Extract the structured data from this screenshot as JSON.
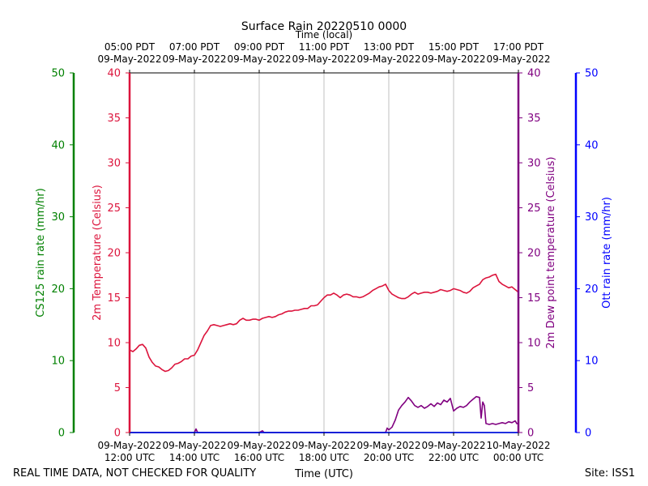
{
  "chart_data": {
    "type": "line",
    "title": "Surface Rain 20220510 0000",
    "top_xlabel": "Time (local)",
    "xlabel": "Time (UTC)",
    "footer_left": "REAL TIME DATA, NOT CHECKED FOR QUALITY",
    "footer_right": "Site: ISS1",
    "x_range_hours": [
      12,
      24
    ],
    "bottom_ticks": [
      {
        "hour": 12,
        "date": "09-May-2022",
        "time": "12:00 UTC"
      },
      {
        "hour": 14,
        "date": "09-May-2022",
        "time": "14:00 UTC"
      },
      {
        "hour": 16,
        "date": "09-May-2022",
        "time": "16:00 UTC"
      },
      {
        "hour": 18,
        "date": "09-May-2022",
        "time": "18:00 UTC"
      },
      {
        "hour": 20,
        "date": "09-May-2022",
        "time": "20:00 UTC"
      },
      {
        "hour": 22,
        "date": "09-May-2022",
        "time": "22:00 UTC"
      },
      {
        "hour": 24,
        "date": "10-May-2022",
        "time": "00:00 UTC"
      }
    ],
    "top_ticks": [
      {
        "hour": 12,
        "time": "05:00 PDT",
        "date": "09-May-2022"
      },
      {
        "hour": 14,
        "time": "07:00 PDT",
        "date": "09-May-2022"
      },
      {
        "hour": 16,
        "time": "09:00 PDT",
        "date": "09-May-2022"
      },
      {
        "hour": 18,
        "time": "11:00 PDT",
        "date": "09-May-2022"
      },
      {
        "hour": 20,
        "time": "13:00 PDT",
        "date": "09-May-2022"
      },
      {
        "hour": 22,
        "time": "15:00 PDT",
        "date": "09-May-2022"
      },
      {
        "hour": 24,
        "time": "17:00 PDT",
        "date": "09-May-2022"
      }
    ],
    "axes": {
      "cs125": {
        "label": "CS125 rain rate (mm/hr)",
        "ylim": [
          0,
          50
        ],
        "ticks": [
          0,
          10,
          20,
          30,
          40,
          50
        ],
        "color": "#008000"
      },
      "temperature": {
        "label": "2m Temperature (Celsius)",
        "ylim": [
          0,
          40
        ],
        "ticks": [
          0,
          5,
          10,
          15,
          20,
          25,
          30,
          35,
          40
        ],
        "color": "#dc143c"
      },
      "dewpoint": {
        "label": "2m Dew point temperature (Celsius)",
        "ylim": [
          0,
          40
        ],
        "ticks": [
          0,
          5,
          10,
          15,
          20,
          25,
          30,
          35,
          40
        ],
        "color": "#800080"
      },
      "ott": {
        "label": "Ott rain rate (mm/hr)",
        "ylim": [
          0,
          50
        ],
        "ticks": [
          0,
          10,
          20,
          30,
          40,
          50
        ],
        "color": "#0000ff"
      }
    },
    "series": [
      {
        "name": "2m Temperature",
        "axis": "temperature",
        "color": "#dc143c",
        "points": [
          [
            12.0,
            9.2
          ],
          [
            12.1,
            9.0
          ],
          [
            12.2,
            9.3
          ],
          [
            12.3,
            9.7
          ],
          [
            12.4,
            9.8
          ],
          [
            12.5,
            9.4
          ],
          [
            12.6,
            8.4
          ],
          [
            12.7,
            7.8
          ],
          [
            12.8,
            7.4
          ],
          [
            12.9,
            7.3
          ],
          [
            13.0,
            7.0
          ],
          [
            13.1,
            6.8
          ],
          [
            13.2,
            6.9
          ],
          [
            13.3,
            7.2
          ],
          [
            13.4,
            7.6
          ],
          [
            13.5,
            7.7
          ],
          [
            13.6,
            7.9
          ],
          [
            13.7,
            8.2
          ],
          [
            13.8,
            8.2
          ],
          [
            13.9,
            8.5
          ],
          [
            14.0,
            8.6
          ],
          [
            14.1,
            9.2
          ],
          [
            14.2,
            10.0
          ],
          [
            14.3,
            10.8
          ],
          [
            14.4,
            11.3
          ],
          [
            14.5,
            11.9
          ],
          [
            14.6,
            12.0
          ],
          [
            14.7,
            11.9
          ],
          [
            14.8,
            11.8
          ],
          [
            14.9,
            11.9
          ],
          [
            15.0,
            12.0
          ],
          [
            15.1,
            12.1
          ],
          [
            15.2,
            12.0
          ],
          [
            15.3,
            12.1
          ],
          [
            15.4,
            12.5
          ],
          [
            15.5,
            12.7
          ],
          [
            15.6,
            12.5
          ],
          [
            15.7,
            12.5
          ],
          [
            15.8,
            12.6
          ],
          [
            15.9,
            12.6
          ],
          [
            16.0,
            12.5
          ],
          [
            16.1,
            12.7
          ],
          [
            16.2,
            12.8
          ],
          [
            16.3,
            12.9
          ],
          [
            16.4,
            12.8
          ],
          [
            16.5,
            12.9
          ],
          [
            16.6,
            13.1
          ],
          [
            16.7,
            13.2
          ],
          [
            16.8,
            13.4
          ],
          [
            16.9,
            13.5
          ],
          [
            17.0,
            13.5
          ],
          [
            17.1,
            13.6
          ],
          [
            17.2,
            13.6
          ],
          [
            17.3,
            13.7
          ],
          [
            17.4,
            13.8
          ],
          [
            17.5,
            13.8
          ],
          [
            17.6,
            14.1
          ],
          [
            17.7,
            14.1
          ],
          [
            17.8,
            14.2
          ],
          [
            17.9,
            14.6
          ],
          [
            18.0,
            15.0
          ],
          [
            18.1,
            15.3
          ],
          [
            18.2,
            15.3
          ],
          [
            18.3,
            15.5
          ],
          [
            18.4,
            15.3
          ],
          [
            18.5,
            15.0
          ],
          [
            18.6,
            15.3
          ],
          [
            18.7,
            15.4
          ],
          [
            18.8,
            15.3
          ],
          [
            18.9,
            15.1
          ],
          [
            19.0,
            15.1
          ],
          [
            19.1,
            15.0
          ],
          [
            19.2,
            15.1
          ],
          [
            19.3,
            15.3
          ],
          [
            19.4,
            15.5
          ],
          [
            19.5,
            15.8
          ],
          [
            19.6,
            16.0
          ],
          [
            19.7,
            16.2
          ],
          [
            19.8,
            16.3
          ],
          [
            19.9,
            16.5
          ],
          [
            20.0,
            15.8
          ],
          [
            20.1,
            15.4
          ],
          [
            20.2,
            15.2
          ],
          [
            20.3,
            15.0
          ],
          [
            20.4,
            14.9
          ],
          [
            20.5,
            14.9
          ],
          [
            20.6,
            15.1
          ],
          [
            20.7,
            15.4
          ],
          [
            20.8,
            15.6
          ],
          [
            20.9,
            15.4
          ],
          [
            21.0,
            15.5
          ],
          [
            21.1,
            15.6
          ],
          [
            21.2,
            15.6
          ],
          [
            21.3,
            15.5
          ],
          [
            21.4,
            15.6
          ],
          [
            21.5,
            15.7
          ],
          [
            21.6,
            15.9
          ],
          [
            21.7,
            15.8
          ],
          [
            21.8,
            15.7
          ],
          [
            21.9,
            15.8
          ],
          [
            22.0,
            16.0
          ],
          [
            22.1,
            15.9
          ],
          [
            22.2,
            15.8
          ],
          [
            22.3,
            15.6
          ],
          [
            22.4,
            15.5
          ],
          [
            22.5,
            15.7
          ],
          [
            22.6,
            16.1
          ],
          [
            22.7,
            16.3
          ],
          [
            22.8,
            16.5
          ],
          [
            22.9,
            17.0
          ],
          [
            23.0,
            17.2
          ],
          [
            23.1,
            17.3
          ],
          [
            23.2,
            17.5
          ],
          [
            23.3,
            17.6
          ],
          [
            23.4,
            16.8
          ],
          [
            23.5,
            16.5
          ],
          [
            23.6,
            16.3
          ],
          [
            23.7,
            16.1
          ],
          [
            23.8,
            16.2
          ],
          [
            23.9,
            15.9
          ],
          [
            24.0,
            15.6
          ]
        ]
      },
      {
        "name": "2m Dew point temperature",
        "axis": "dewpoint",
        "color": "#800080",
        "points": [
          [
            12.0,
            0.0
          ],
          [
            14.0,
            0.0
          ],
          [
            14.05,
            0.4
          ],
          [
            14.1,
            0.0
          ],
          [
            16.0,
            0.0
          ],
          [
            16.1,
            0.2
          ],
          [
            16.15,
            0.0
          ],
          [
            19.9,
            0.0
          ],
          [
            19.95,
            0.5
          ],
          [
            20.0,
            0.3
          ],
          [
            20.1,
            0.6
          ],
          [
            20.2,
            1.4
          ],
          [
            20.3,
            2.5
          ],
          [
            20.4,
            3.0
          ],
          [
            20.5,
            3.4
          ],
          [
            20.6,
            3.9
          ],
          [
            20.7,
            3.5
          ],
          [
            20.8,
            3.0
          ],
          [
            20.9,
            2.8
          ],
          [
            21.0,
            3.0
          ],
          [
            21.1,
            2.7
          ],
          [
            21.2,
            2.9
          ],
          [
            21.3,
            3.2
          ],
          [
            21.4,
            2.9
          ],
          [
            21.5,
            3.3
          ],
          [
            21.6,
            3.1
          ],
          [
            21.7,
            3.6
          ],
          [
            21.8,
            3.4
          ],
          [
            21.9,
            3.8
          ],
          [
            22.0,
            2.4
          ],
          [
            22.1,
            2.7
          ],
          [
            22.2,
            2.9
          ],
          [
            22.3,
            2.8
          ],
          [
            22.4,
            3.0
          ],
          [
            22.5,
            3.4
          ],
          [
            22.6,
            3.7
          ],
          [
            22.7,
            4.0
          ],
          [
            22.8,
            3.9
          ],
          [
            22.85,
            1.6
          ],
          [
            22.9,
            3.4
          ],
          [
            22.95,
            3.0
          ],
          [
            23.0,
            1.0
          ],
          [
            23.1,
            0.9
          ],
          [
            23.2,
            1.0
          ],
          [
            23.3,
            0.9
          ],
          [
            23.4,
            1.0
          ],
          [
            23.5,
            1.1
          ],
          [
            23.6,
            1.0
          ],
          [
            23.7,
            1.2
          ],
          [
            23.8,
            1.1
          ],
          [
            23.9,
            1.3
          ],
          [
            23.95,
            1.0
          ],
          [
            24.0,
            1.0
          ]
        ]
      },
      {
        "name": "CS125 rain rate",
        "axis": "cs125",
        "color": "#008000",
        "points": [
          [
            12.0,
            0.0
          ],
          [
            24.0,
            0.0
          ]
        ]
      },
      {
        "name": "Ott rain rate",
        "axis": "ott",
        "color": "#0000ff",
        "points": [
          [
            12.0,
            0.0
          ],
          [
            24.0,
            0.0
          ]
        ]
      }
    ]
  }
}
